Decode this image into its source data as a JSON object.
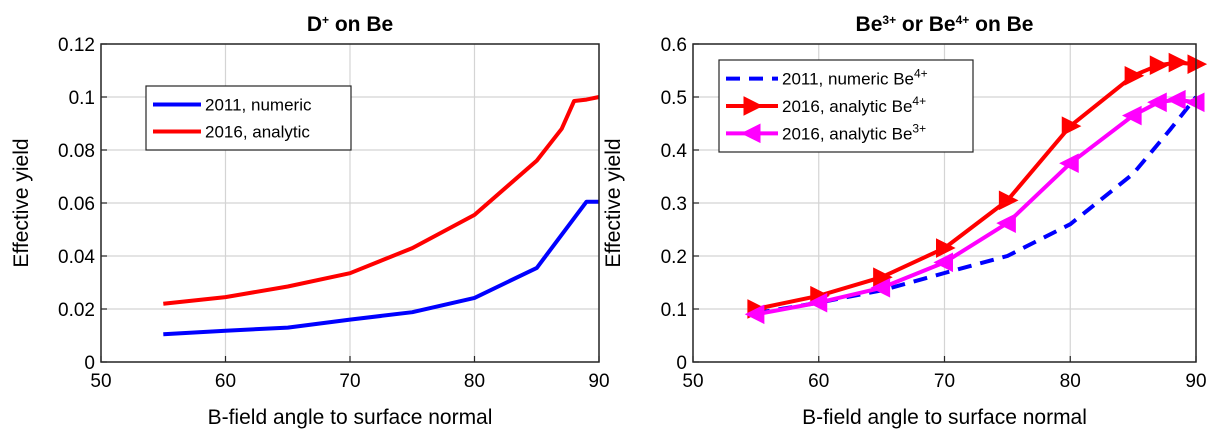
{
  "chart_data": [
    {
      "type": "line",
      "title": {
        "base": "D",
        "sup": "+",
        "rest": " on Be"
      },
      "xlabel": "B-field angle to surface normal",
      "ylabel": "Effective yield",
      "xlim": [
        50,
        90
      ],
      "ylim": [
        0,
        0.12
      ],
      "xticks": [
        50,
        60,
        70,
        80,
        90
      ],
      "yticks": [
        0,
        0.02,
        0.04,
        0.06,
        0.08,
        0.1,
        0.12
      ],
      "yticklabels": [
        "0",
        "0.02",
        "0.04",
        "0.06",
        "0.08",
        "0.1",
        "0.12"
      ],
      "grid": true,
      "legend_position": "upper-left",
      "series": [
        {
          "name": "2011, numeric",
          "color": "#0000ff",
          "style": "solid",
          "marker": "none",
          "x": [
            55,
            60,
            65,
            70,
            75,
            80,
            85,
            89,
            90
          ],
          "y": [
            0.0105,
            0.0118,
            0.013,
            0.016,
            0.0188,
            0.0242,
            0.0355,
            0.0605,
            0.0605
          ]
        },
        {
          "name": "2016, analytic",
          "color": "#ff0000",
          "style": "solid",
          "marker": "none",
          "x": [
            55,
            60,
            65,
            70,
            75,
            80,
            85,
            87,
            88,
            89,
            90
          ],
          "y": [
            0.022,
            0.0245,
            0.0285,
            0.0335,
            0.043,
            0.0555,
            0.076,
            0.088,
            0.0985,
            0.099,
            0.1
          ]
        }
      ]
    },
    {
      "type": "line",
      "title": {
        "parts": [
          {
            "t": "Be"
          },
          {
            "t": "3+",
            "sup": true
          },
          {
            "t": " or Be"
          },
          {
            "t": "4+",
            "sup": true
          },
          {
            "t": " on Be"
          }
        ]
      },
      "xlabel": "B-field angle to surface normal",
      "ylabel": "Effective yield",
      "xlim": [
        50,
        90
      ],
      "ylim": [
        0,
        0.6
      ],
      "xticks": [
        50,
        60,
        70,
        80,
        90
      ],
      "yticks": [
        0,
        0.1,
        0.2,
        0.3,
        0.4,
        0.5,
        0.6
      ],
      "yticklabels": [
        "0",
        "0.1",
        "0.2",
        "0.3",
        "0.4",
        "0.5",
        "0.6"
      ],
      "grid": true,
      "legend_position": "upper-left",
      "series": [
        {
          "name": "2011, numeric Be",
          "name_sup": "4+",
          "color": "#0000ff",
          "style": "dashed",
          "marker": "none",
          "x": [
            55,
            60,
            65,
            70,
            75,
            80,
            85,
            88,
            90
          ],
          "y": [
            0.092,
            0.112,
            0.135,
            0.168,
            0.2,
            0.26,
            0.355,
            0.44,
            0.5
          ]
        },
        {
          "name": "2016, analytic Be",
          "name_sup": "4+",
          "color": "#ff0000",
          "style": "solid",
          "marker": "triangle-right",
          "x": [
            55,
            60,
            65,
            70,
            75,
            80,
            85,
            87,
            88.5,
            90
          ],
          "y": [
            0.1,
            0.125,
            0.16,
            0.215,
            0.305,
            0.445,
            0.54,
            0.56,
            0.565,
            0.562
          ]
        },
        {
          "name": "2016, analytic Be",
          "name_sup": "3+",
          "color": "#ff00ff",
          "style": "solid",
          "marker": "triangle-left",
          "x": [
            55,
            60,
            65,
            70,
            75,
            80,
            85,
            87,
            88.5,
            90
          ],
          "y": [
            0.09,
            0.112,
            0.14,
            0.188,
            0.262,
            0.375,
            0.465,
            0.49,
            0.495,
            0.49
          ]
        }
      ]
    }
  ]
}
